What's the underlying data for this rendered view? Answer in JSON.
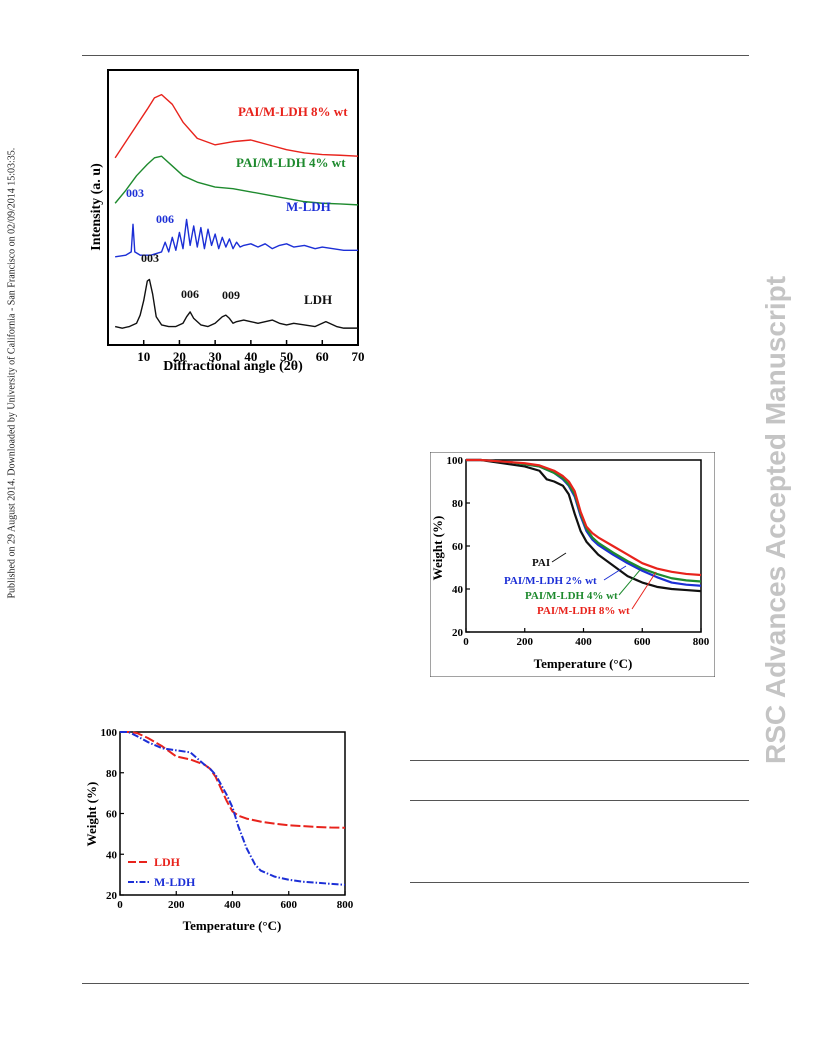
{
  "page": {
    "side_note": "Published on 29 August 2014. Downloaded by University of California - San Francisco on 02/09/2014 15:03:35.",
    "watermark": "RSC Advances Accepted Manuscript"
  },
  "colors": {
    "red": "#e8231c",
    "green": "#1e8a2e",
    "blue": "#1c2fd6",
    "black": "#111111"
  },
  "chart_data": [
    {
      "type": "line",
      "id": "xrd",
      "xlabel": "Diffractional angle (2θ)",
      "ylabel": "Intensity (a. u)",
      "xlim": [
        0,
        70
      ],
      "xticks": [
        10,
        20,
        30,
        40,
        50,
        60,
        70
      ],
      "series": [
        {
          "name": "PAI/M-LDH 8% wt",
          "color": "#e8231c",
          "x": [
            2,
            5,
            8,
            11,
            13,
            15,
            18,
            21,
            25,
            30,
            35,
            40,
            45,
            50,
            55,
            60,
            65,
            70
          ],
          "y": [
            5.4,
            5.9,
            6.4,
            6.9,
            7.25,
            7.35,
            7.05,
            6.5,
            6.0,
            5.8,
            5.9,
            5.95,
            5.8,
            5.65,
            5.55,
            5.5,
            5.48,
            5.45
          ]
        },
        {
          "name": "PAI/M-LDH 4% wt",
          "color": "#1e8a2e",
          "x": [
            2,
            5,
            8,
            11,
            13,
            15,
            18,
            21,
            25,
            30,
            35,
            40,
            45,
            50,
            55,
            60,
            65,
            70
          ],
          "y": [
            4.0,
            4.4,
            4.85,
            5.2,
            5.4,
            5.45,
            5.15,
            4.85,
            4.65,
            4.5,
            4.45,
            4.35,
            4.25,
            4.15,
            4.05,
            4.0,
            3.98,
            3.95
          ]
        },
        {
          "name": "M-LDH",
          "color": "#1c2fd6",
          "x": [
            2,
            5,
            6.5,
            7,
            7.5,
            9,
            12,
            15,
            16,
            17,
            18,
            19,
            20,
            21,
            22,
            23,
            24,
            25,
            26,
            27,
            28,
            29,
            30,
            31,
            32,
            33,
            34,
            35,
            36,
            37,
            38,
            40,
            42,
            44,
            46,
            48,
            50,
            52,
            55,
            58,
            60,
            63,
            66,
            70
          ],
          "y": [
            2.35,
            2.4,
            2.5,
            3.35,
            2.5,
            2.4,
            2.4,
            2.5,
            2.8,
            2.5,
            2.95,
            2.55,
            3.1,
            2.6,
            3.5,
            2.7,
            3.3,
            2.65,
            3.25,
            2.6,
            3.2,
            2.7,
            3.05,
            2.6,
            2.95,
            2.65,
            2.9,
            2.6,
            2.8,
            2.65,
            2.7,
            2.75,
            2.65,
            2.75,
            2.6,
            2.7,
            2.75,
            2.65,
            2.7,
            2.6,
            2.65,
            2.6,
            2.55,
            2.55
          ]
        },
        {
          "name": "LDH",
          "color": "#111111",
          "x": [
            2,
            4,
            6,
            8,
            9,
            10,
            11,
            11.6,
            12.5,
            13.5,
            15,
            17,
            19,
            21,
            22,
            23,
            24,
            26,
            28,
            30,
            32,
            33,
            34,
            35,
            36,
            38,
            40,
            42,
            44,
            46,
            48,
            50,
            52,
            55,
            58,
            60,
            61,
            62,
            64,
            66,
            70
          ],
          "y": [
            0.2,
            0.15,
            0.2,
            0.3,
            0.55,
            1.0,
            1.6,
            1.65,
            1.2,
            0.5,
            0.25,
            0.2,
            0.2,
            0.3,
            0.5,
            0.65,
            0.45,
            0.25,
            0.2,
            0.3,
            0.5,
            0.55,
            0.45,
            0.3,
            0.35,
            0.4,
            0.35,
            0.3,
            0.35,
            0.4,
            0.3,
            0.25,
            0.3,
            0.25,
            0.2,
            0.3,
            0.35,
            0.3,
            0.2,
            0.15,
            0.15
          ]
        }
      ],
      "annotations": [
        {
          "text": "PAI/M-LDH 8% wt",
          "color": "#e8231c"
        },
        {
          "text": "PAI/M-LDH 4% wt",
          "color": "#1e8a2e"
        },
        {
          "text": "003",
          "color": "#1c2fd6"
        },
        {
          "text": "006",
          "color": "#1c2fd6"
        },
        {
          "text": "M-LDH",
          "color": "#1c2fd6"
        },
        {
          "text": "003",
          "color": "#111111"
        },
        {
          "text": "006",
          "color": "#111111"
        },
        {
          "text": "009",
          "color": "#111111"
        },
        {
          "text": "LDH",
          "color": "#111111"
        }
      ]
    },
    {
      "type": "line",
      "id": "tga-composite",
      "xlabel": "Temperature (°C)",
      "ylabel": "Weight (%)",
      "xlim": [
        0,
        800
      ],
      "ylim": [
        20,
        100
      ],
      "xticks": [
        0,
        200,
        400,
        600,
        800
      ],
      "yticks": [
        20,
        40,
        60,
        80,
        100
      ],
      "series": [
        {
          "name": "PAI",
          "color": "#111111",
          "x": [
            0,
            50,
            100,
            150,
            200,
            250,
            275,
            300,
            330,
            350,
            370,
            390,
            410,
            450,
            500,
            550,
            600,
            650,
            700,
            750,
            800
          ],
          "y": [
            100,
            100,
            99,
            98,
            97,
            95,
            91,
            90,
            88,
            84,
            75,
            67,
            62,
            56,
            51,
            46,
            43,
            41,
            40,
            39.5,
            39
          ]
        },
        {
          "name": "PAI/M-LDH 2% wt",
          "color": "#1c2fd6",
          "x": [
            0,
            50,
            100,
            150,
            200,
            250,
            300,
            330,
            350,
            370,
            390,
            410,
            430,
            450,
            500,
            550,
            600,
            650,
            700,
            750,
            800
          ],
          "y": [
            100,
            100,
            99.5,
            99,
            98,
            97,
            94,
            91,
            88,
            83,
            74,
            67,
            63,
            60.5,
            56,
            52,
            48.5,
            45.5,
            43,
            42,
            41.5
          ]
        },
        {
          "name": "PAI/M-LDH 4% wt",
          "color": "#1e8a2e",
          "x": [
            0,
            50,
            100,
            150,
            200,
            250,
            300,
            330,
            350,
            370,
            390,
            410,
            430,
            450,
            500,
            550,
            600,
            650,
            700,
            750,
            800
          ],
          "y": [
            100,
            100,
            99.5,
            99,
            98,
            97,
            94,
            91.5,
            88.5,
            84,
            75,
            68,
            64,
            61.5,
            57,
            53,
            49.5,
            47,
            45,
            44,
            43.5
          ]
        },
        {
          "name": "PAI/M-LDH 8% wt",
          "color": "#e8231c",
          "x": [
            0,
            50,
            100,
            150,
            200,
            250,
            300,
            330,
            350,
            370,
            390,
            410,
            430,
            450,
            500,
            550,
            600,
            650,
            700,
            750,
            800
          ],
          "y": [
            100,
            100,
            99.5,
            99,
            98.5,
            97.5,
            95,
            92.5,
            90,
            85.5,
            76,
            69,
            66,
            64,
            60,
            56,
            52,
            49.5,
            48,
            47,
            46.5
          ]
        }
      ],
      "annotations": [
        {
          "text": "PAI",
          "color": "#111111"
        },
        {
          "text": "PAI/M-LDH 2% wt",
          "color": "#1c2fd6"
        },
        {
          "text": "PAI/M-LDH 4% wt",
          "color": "#1e8a2e"
        },
        {
          "text": "PAI/M-LDH 8% wt",
          "color": "#e8231c"
        }
      ]
    },
    {
      "type": "line",
      "id": "tga-ldh",
      "xlabel": "Temperature (°C)",
      "ylabel": "Weight (%)",
      "xlim": [
        0,
        800
      ],
      "ylim": [
        20,
        100
      ],
      "xticks": [
        0,
        200,
        400,
        600,
        800
      ],
      "yticks": [
        20,
        40,
        60,
        80,
        100
      ],
      "legend": "bottom-left",
      "series": [
        {
          "name": "LDH",
          "color": "#e8231c",
          "dash": "long",
          "x": [
            0,
            30,
            60,
            100,
            150,
            200,
            250,
            300,
            320,
            340,
            360,
            380,
            400,
            420,
            450,
            500,
            550,
            600,
            650,
            700,
            750,
            800
          ],
          "y": [
            100,
            100,
            99.5,
            97,
            93,
            88,
            86.5,
            84,
            82,
            78,
            72,
            66,
            61,
            59,
            57.5,
            56,
            55,
            54.2,
            53.8,
            53.4,
            53.1,
            53
          ]
        },
        {
          "name": "M-LDH",
          "color": "#1c2fd6",
          "dash": "dashdot",
          "x": [
            0,
            30,
            60,
            100,
            150,
            200,
            250,
            300,
            320,
            340,
            360,
            380,
            400,
            420,
            450,
            480,
            500,
            550,
            600,
            650,
            700,
            750,
            800
          ],
          "y": [
            100,
            100,
            98,
            95,
            92,
            91,
            90,
            84,
            82,
            79,
            74,
            69,
            63,
            54,
            43,
            35,
            32,
            29,
            27.5,
            26.5,
            26,
            25.5,
            25
          ]
        }
      ]
    }
  ]
}
